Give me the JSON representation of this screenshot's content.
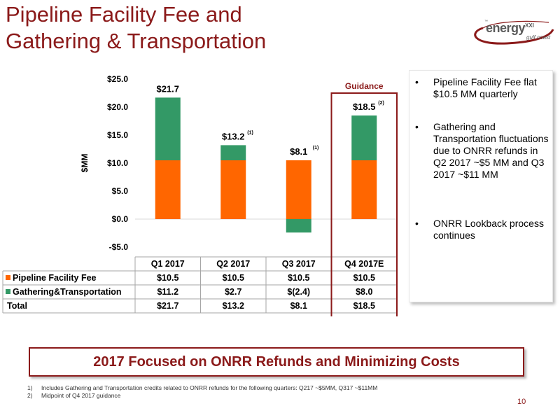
{
  "title": {
    "line1": "Pipeline Facility Fee and",
    "line2": "Gathering & Transportation"
  },
  "logo": {
    "tm": "™",
    "name": "energy",
    "sup": "XXI",
    "sub": "gulf coast"
  },
  "chart_data": {
    "type": "bar",
    "stacked": true,
    "categories": [
      "Q1 2017",
      "Q2 2017",
      "Q3 2017",
      "Q4 2017E"
    ],
    "series": [
      {
        "name": "Pipeline Facility Fee",
        "values": [
          10.5,
          10.5,
          10.5,
          10.5
        ],
        "color": "#ff6600",
        "table_labels": [
          "$10.5",
          "$10.5",
          "$10.5",
          "$10.5"
        ]
      },
      {
        "name": "Gathering&Transportation",
        "values": [
          11.2,
          2.7,
          -2.4,
          8.0
        ],
        "color": "#339966",
        "table_labels": [
          "$11.2",
          "$2.7",
          "$(2.4)",
          "$8.0"
        ]
      }
    ],
    "totals": {
      "name": "Total",
      "values": [
        21.7,
        13.2,
        8.1,
        18.5
      ],
      "labels": [
        "$21.7",
        "$13.2",
        "$8.1",
        "$18.5"
      ]
    },
    "total_bar_labels": [
      {
        "text": "$21.7",
        "note": ""
      },
      {
        "text": "$13.2",
        "note": "(1)"
      },
      {
        "text": "$8.1",
        "note": "(1)"
      },
      {
        "text": "$18.5",
        "note": "(2)"
      }
    ],
    "ylabel": "$MM",
    "ylim": [
      -5,
      25
    ],
    "yticks": [
      25,
      20,
      15,
      10,
      5,
      0,
      -5
    ],
    "ytick_labels": [
      "$25.0",
      "$20.0",
      "$15.0",
      "$10.0",
      "$5.0",
      "$0.0",
      "-$5.0"
    ],
    "highlight": {
      "category_index": 3,
      "label": "Guidance",
      "color": "#8b1a1a"
    },
    "data_table": true
  },
  "bullets": [
    {
      "dot": "•",
      "text": "Pipeline Facility Fee flat $10.5 MM quarterly"
    },
    {
      "dot": "•",
      "text": "Gathering and Transportation fluctuations due to ONRR refunds in Q2 2017 ~$5 MM and Q3 2017 ~$11 MM"
    },
    {
      "dot": "•",
      "text": "ONRR Lookback process continues"
    }
  ],
  "banner": "2017 Focused on ONRR Refunds and Minimizing Costs",
  "footnotes": [
    {
      "num": "1)",
      "text": "Includes Gathering and Transportation credits related to ONRR refunds for the following quarters: Q217 ~$5MM, Q317 ~$11MM"
    },
    {
      "num": "2)",
      "text": "Midpoint of Q4 2017 guidance"
    }
  ],
  "page_number": "10",
  "colors": {
    "accent": "#8b1a1a",
    "pipeline": "#ff6600",
    "gathering": "#339966"
  }
}
